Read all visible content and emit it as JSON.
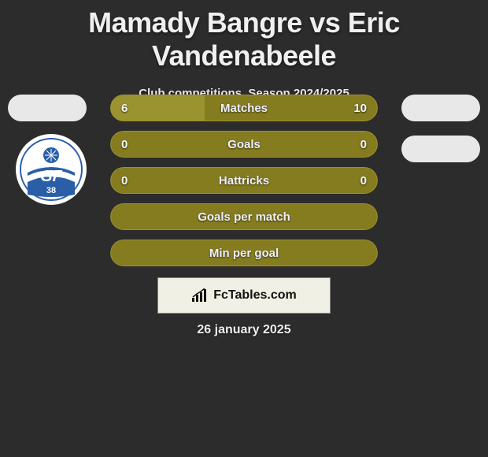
{
  "title": "Mamady Bangre vs Eric Vandenabeele",
  "subtitle": "Club competitions, Season 2024/2025",
  "date": "26 january 2025",
  "branding": "FcTables.com",
  "colors": {
    "background": "#2c2c2c",
    "bar_base": "#857c20",
    "bar_left": "#9b9230",
    "avatar_bg": "#e8e8e8",
    "branding_bg": "#f0f0e4",
    "club_blue": "#2a5fa8",
    "text": "#f0f0f0"
  },
  "bars": [
    {
      "label": "Matches",
      "left": "6",
      "right": "10",
      "left_w": 120
    },
    {
      "label": "Goals",
      "left": "0",
      "right": "0",
      "left_w": 0
    },
    {
      "label": "Hattricks",
      "left": "0",
      "right": "0",
      "left_w": 0
    },
    {
      "label": "Goals per match",
      "left": "",
      "right": "",
      "left_w": 0
    },
    {
      "label": "Min per goal",
      "left": "",
      "right": "",
      "left_w": 0
    }
  ],
  "club": {
    "name": "Grenoble Foot 38",
    "initials": "GF",
    "number": "38"
  }
}
